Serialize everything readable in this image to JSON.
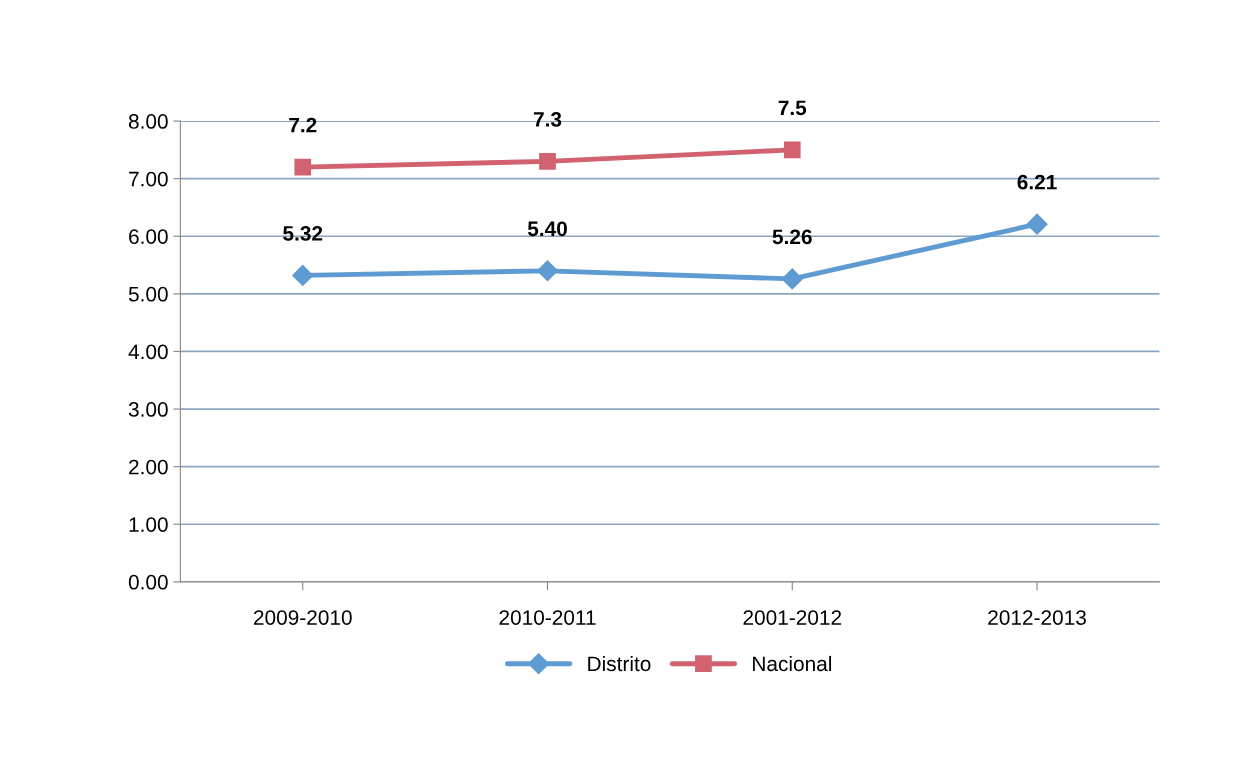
{
  "chart_data": {
    "type": "line",
    "categories": [
      "2009-2010",
      "2010-2011",
      "2001-2012",
      "2012-2013"
    ],
    "series": [
      {
        "name": "Distrito",
        "color": "#5f9bd3",
        "marker": "diamond",
        "values": [
          5.32,
          5.4,
          5.26,
          6.21
        ],
        "value_labels": [
          "5.32",
          "5.40",
          "5.26",
          "6.21"
        ]
      },
      {
        "name": "Nacional",
        "color": "#d2626f",
        "marker": "square",
        "values": [
          7.2,
          7.3,
          7.5,
          null
        ],
        "value_labels": [
          "7.2",
          "7.3",
          "7.5",
          null
        ]
      }
    ],
    "ylim": [
      0,
      8
    ],
    "yticks": [
      {
        "value": 0,
        "label": "0.00"
      },
      {
        "value": 1,
        "label": "1.00"
      },
      {
        "value": 2,
        "label": "2.00"
      },
      {
        "value": 3,
        "label": "3.00"
      },
      {
        "value": 4,
        "label": "4.00"
      },
      {
        "value": 5,
        "label": "5.00"
      },
      {
        "value": 6,
        "label": "6.00"
      },
      {
        "value": 7,
        "label": "7.00"
      },
      {
        "value": 8,
        "label": "8.00"
      }
    ],
    "grid": "y",
    "legend": "bottom",
    "line_style": "solid"
  }
}
